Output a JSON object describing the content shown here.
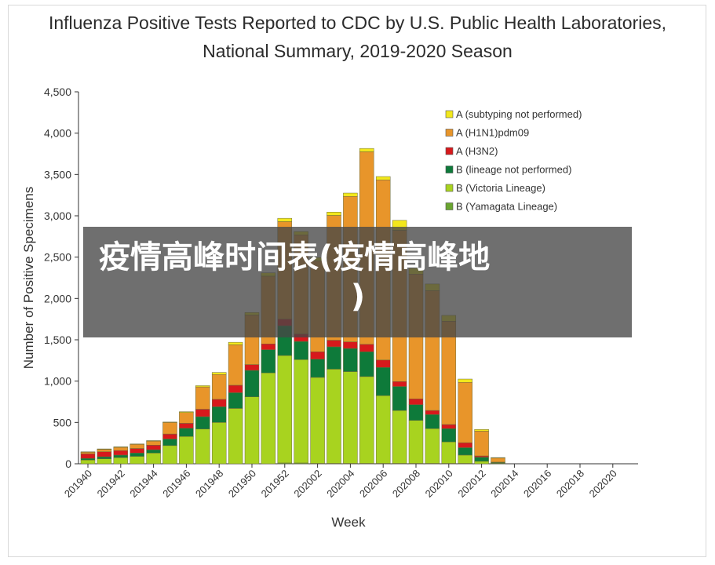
{
  "chart_data": {
    "type": "bar",
    "stacked": true,
    "title": "Influenza Positive Tests Reported to CDC by U.S. Public Health Laboratories,",
    "subtitle": "National Summary, 2019-2020 Season",
    "xlabel": "Week",
    "ylabel": "Number of Positive Specimens",
    "ylim": [
      0,
      4500
    ],
    "yticks": [
      0,
      500,
      1000,
      1500,
      2000,
      2500,
      3000,
      3500,
      4000,
      4500
    ],
    "ytick_labels": [
      "0",
      "500",
      "1,000",
      "1,500",
      "2,000",
      "2,500",
      "3,000",
      "3,500",
      "4,000",
      "4,500"
    ],
    "x_tick_labels": [
      "201940",
      "201942",
      "201944",
      "201946",
      "201948",
      "201950",
      "201952",
      "202002",
      "202004",
      "202006",
      "202008",
      "202010",
      "202012",
      "202014",
      "202016",
      "202018",
      "202020"
    ],
    "categories": [
      "201940",
      "201941",
      "201942",
      "201943",
      "201944",
      "201945",
      "201946",
      "201947",
      "201948",
      "201949",
      "201950",
      "201951",
      "201952",
      "202001",
      "202002",
      "202003",
      "202004",
      "202005",
      "202006",
      "202007",
      "202008",
      "202009",
      "202010",
      "202011",
      "202012",
      "202013",
      "202014",
      "202015",
      "202016",
      "202017",
      "202018",
      "202019",
      "202020",
      "202021"
    ],
    "legend_position": "top-right",
    "series": [
      {
        "name": "B (Yamagata Lineage)",
        "color": "#6aa530",
        "values": [
          0,
          0,
          0,
          0,
          0,
          0,
          0,
          0,
          0,
          0,
          0,
          0,
          10,
          10,
          5,
          5,
          5,
          5,
          5,
          5,
          5,
          5,
          5,
          5,
          0,
          0,
          0,
          0,
          0,
          0,
          0,
          0,
          0,
          0
        ]
      },
      {
        "name": "B (Victoria Lineage)",
        "color": "#a8d31f",
        "values": [
          45,
          60,
          75,
          90,
          130,
          220,
          330,
          420,
          500,
          670,
          810,
          1100,
          1300,
          1250,
          1040,
          1140,
          1110,
          1050,
          820,
          640,
          520,
          420,
          260,
          100,
          30,
          5,
          0,
          0,
          0,
          0,
          0,
          0,
          0,
          0
        ]
      },
      {
        "name": "B (lineage not performed)",
        "color": "#0e7a3a",
        "values": [
          20,
          25,
          30,
          40,
          40,
          80,
          100,
          150,
          190,
          190,
          320,
          280,
          360,
          220,
          220,
          270,
          280,
          300,
          340,
          290,
          190,
          170,
          160,
          90,
          50,
          10,
          0,
          0,
          0,
          0,
          0,
          0,
          0,
          0
        ]
      },
      {
        "name": "A (H3N2)",
        "color": "#d7191c",
        "values": [
          55,
          60,
          55,
          55,
          55,
          60,
          60,
          90,
          90,
          90,
          70,
          70,
          80,
          90,
          90,
          80,
          80,
          90,
          90,
          60,
          70,
          50,
          50,
          60,
          15,
          5,
          0,
          0,
          0,
          0,
          0,
          0,
          0,
          0
        ]
      },
      {
        "name": "A (H1N1)pdm09",
        "color": "#e8952a",
        "values": [
          20,
          30,
          40,
          50,
          50,
          140,
          130,
          270,
          300,
          490,
          600,
          820,
          1180,
          1200,
          1100,
          1510,
          1760,
          2330,
          2180,
          1830,
          1510,
          1450,
          1250,
          730,
          300,
          50,
          0,
          0,
          0,
          0,
          0,
          0,
          0,
          0
        ]
      },
      {
        "name": "A (subtyping not performed)",
        "color": "#f2e81c",
        "values": [
          5,
          5,
          5,
          5,
          5,
          5,
          10,
          15,
          25,
          30,
          30,
          40,
          40,
          40,
          40,
          40,
          40,
          40,
          40,
          120,
          70,
          80,
          70,
          40,
          20,
          5,
          0,
          0,
          0,
          0,
          0,
          0,
          0,
          0
        ]
      }
    ]
  },
  "overlay": {
    "line1": "疫情高峰时间表(疫情高峰地",
    "line2": ")"
  }
}
